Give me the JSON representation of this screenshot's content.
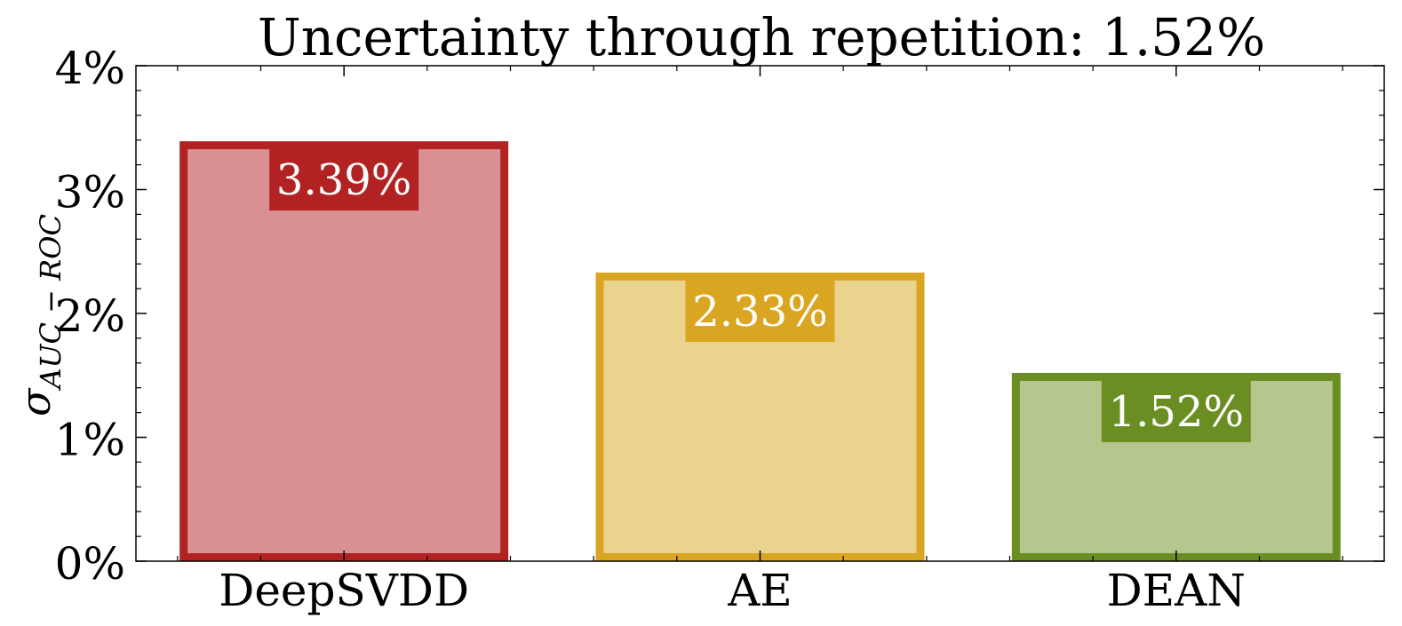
{
  "chart_data": {
    "type": "bar",
    "title": "Uncertainty through repetition: 1.52%",
    "ylabel": "σ AUC − ROC",
    "ylabel_parts": {
      "main": "σ",
      "sub": "AUC − ROC"
    },
    "categories": [
      "DeepSVDD",
      "AE",
      "DEAN"
    ],
    "values": [
      3.39,
      2.33,
      1.52
    ],
    "data_labels": [
      "3.39%",
      "2.33%",
      "1.52%"
    ],
    "ylim": [
      0,
      4
    ],
    "yticks": [
      0,
      1,
      2,
      3,
      4
    ],
    "ytick_labels": [
      "0%",
      "1%",
      "2%",
      "3%",
      "4%"
    ],
    "colors": [
      "#b22222",
      "#daa520",
      "#6b8e23"
    ],
    "fill_colors": [
      "#d99092",
      "#ead28f",
      "#b5c78e"
    ],
    "grid": false,
    "legend": "none"
  }
}
